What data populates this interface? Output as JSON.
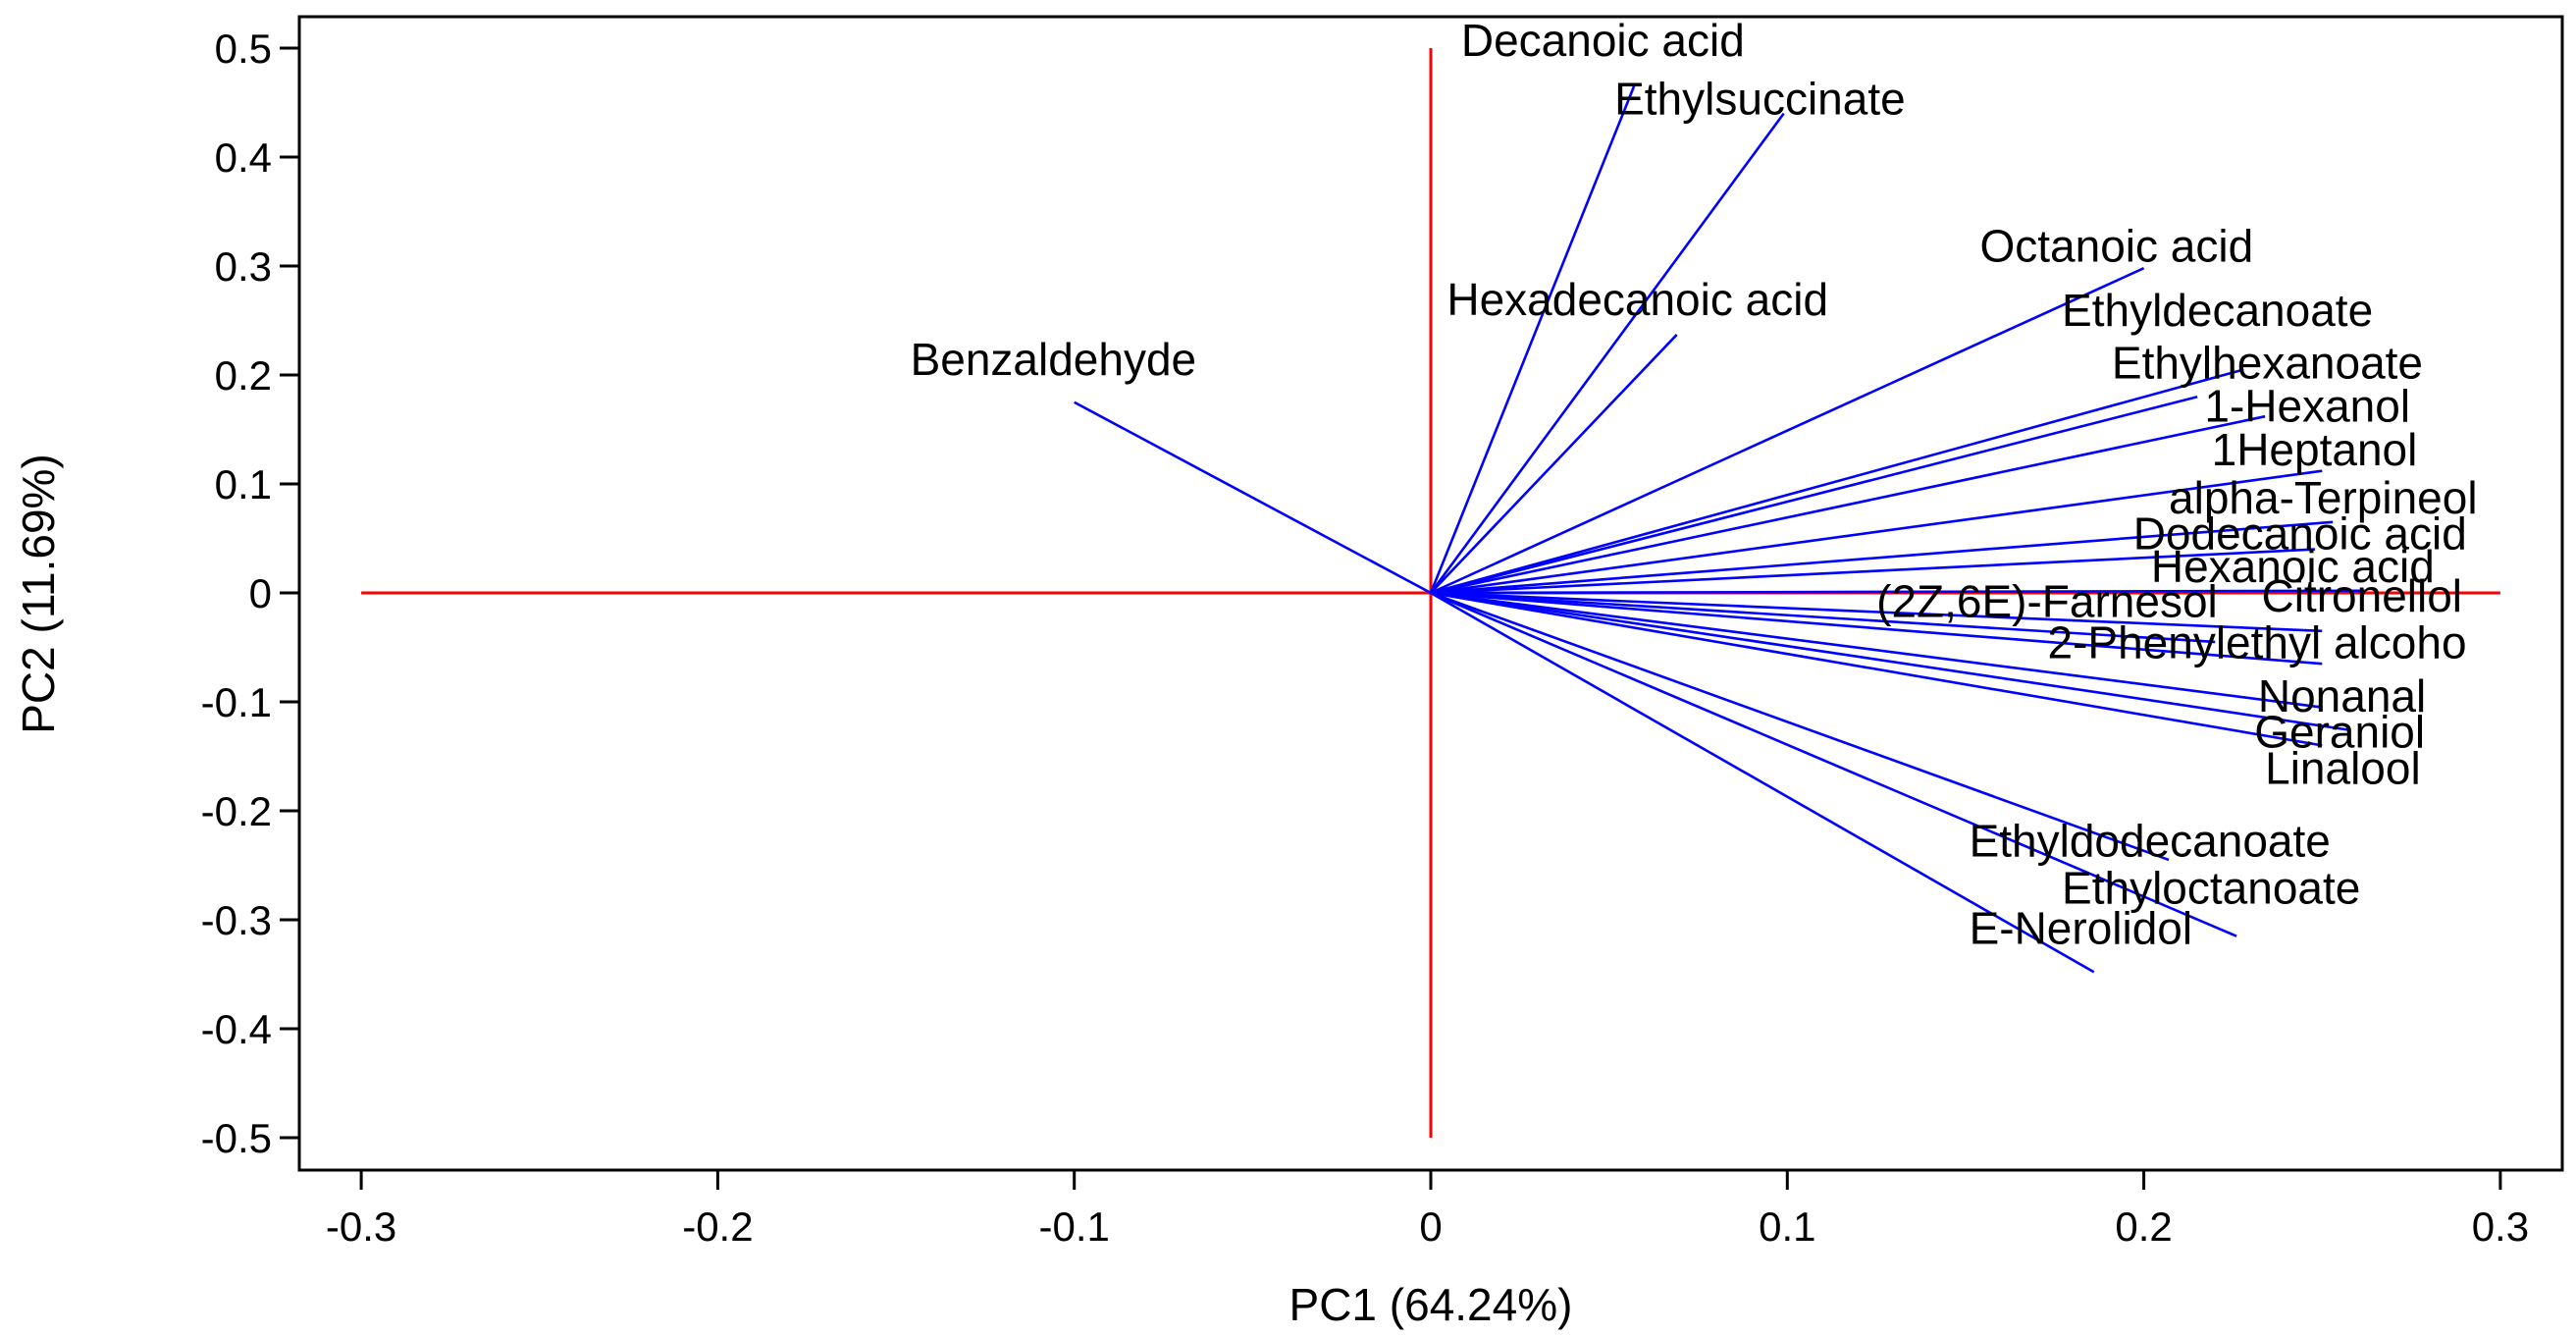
{
  "chart_data": {
    "type": "biplot",
    "xlabel": "PC1 (64.24%)",
    "ylabel": "PC2 (11.69%)",
    "xlim": [
      -0.3,
      0.3
    ],
    "ylim": [
      -0.5,
      0.5
    ],
    "xticks": [
      -0.3,
      -0.2,
      -0.1,
      0,
      0.1,
      0.2,
      0.3
    ],
    "xtick_labels": [
      "-0.3",
      "-0.2",
      "-0.1",
      "0",
      "0.1",
      "0.2",
      "0.3"
    ],
    "yticks": [
      0.5,
      0.4,
      0.3,
      0.2,
      0.1,
      0,
      -0.1,
      -0.2,
      -0.3,
      -0.4,
      -0.5
    ],
    "ytick_labels": [
      "0.5",
      "0.4",
      "0.3",
      "0.2",
      "0.1",
      "0",
      "-0.1",
      "-0.2",
      "-0.3",
      "-0.4",
      "-0.5"
    ],
    "reference_lines": {
      "horizontal": {
        "y": 0,
        "x_from": -0.3,
        "x_to": 0.3
      },
      "vertical": {
        "x": 0,
        "y_from": -0.5,
        "y_to": 0.5
      }
    },
    "colors": {
      "vectors": "#0000ff",
      "reference": "#ff0000",
      "axes": "#000000"
    },
    "loadings": [
      {
        "name": "Decanoic acid",
        "x": 0.057,
        "y": 0.465,
        "label_x": 0.0085,
        "label_y": 0.493
      },
      {
        "name": "Ethylsuccinate",
        "x": 0.099,
        "y": 0.44,
        "label_x": 0.0515,
        "label_y": 0.439
      },
      {
        "name": "Octanoic acid",
        "x": 0.2,
        "y": 0.298,
        "label_x": 0.154,
        "label_y": 0.304
      },
      {
        "name": "Hexadecanoic acid",
        "x": 0.069,
        "y": 0.237,
        "label_x": 0.0045,
        "label_y": 0.255
      },
      {
        "name": "Benzaldehyde",
        "x": -0.1,
        "y": 0.175,
        "label_x": -0.146,
        "label_y": 0.2
      },
      {
        "name": "Ethyldecanoate",
        "x": 0.228,
        "y": 0.205,
        "label_x": 0.177,
        "label_y": 0.245
      },
      {
        "name": "Ethylhexanoate",
        "x": 0.215,
        "y": 0.18,
        "label_x": 0.191,
        "label_y": 0.197
      },
      {
        "name": "1-Hexanol",
        "x": 0.234,
        "y": 0.162,
        "label_x": 0.217,
        "label_y": 0.157
      },
      {
        "name": "1Heptanol",
        "x": 0.25,
        "y": 0.112,
        "label_x": 0.219,
        "label_y": 0.117
      },
      {
        "name": "alpha-Terpineol",
        "x": 0.253,
        "y": 0.065,
        "label_x": 0.207,
        "label_y": 0.073
      },
      {
        "name": "Dodecanoic acid",
        "x": 0.248,
        "y": 0.04,
        "label_x": 0.197,
        "label_y": 0.04
      },
      {
        "name": "Hexanoic acid",
        "x": 0.262,
        "y": 0.002,
        "label_x": 0.202,
        "label_y": 0.01
      },
      {
        "name": "Citronellol",
        "x": 0.25,
        "y": -0.035,
        "label_x": 0.233,
        "label_y": -0.017
      },
      {
        "name": "(2Z,6E)-Farnesol",
        "x": 0.22,
        "y": -0.045,
        "label_x": 0.125,
        "label_y": -0.022
      },
      {
        "name": "2-Phenylethyl alcoho",
        "x": 0.25,
        "y": -0.065,
        "label_x": 0.173,
        "label_y": -0.06
      },
      {
        "name": "Nonanal",
        "x": 0.25,
        "y": -0.105,
        "label_x": 0.232,
        "label_y": -0.109
      },
      {
        "name": "Geraniol",
        "x": 0.258,
        "y": -0.126,
        "label_x": 0.231,
        "label_y": -0.142
      },
      {
        "name": "Linalool",
        "x": 0.25,
        "y": -0.14,
        "label_x": 0.234,
        "label_y": -0.175
      },
      {
        "name": "Ethyldodecanoate",
        "x": 0.207,
        "y": -0.245,
        "label_x": 0.151,
        "label_y": -0.242
      },
      {
        "name": "Ethyloctanoate",
        "x": 0.226,
        "y": -0.315,
        "label_x": 0.177,
        "label_y": -0.285
      },
      {
        "name": "E-Nerolidol",
        "x": 0.186,
        "y": -0.348,
        "label_x": 0.151,
        "label_y": -0.322
      }
    ]
  }
}
